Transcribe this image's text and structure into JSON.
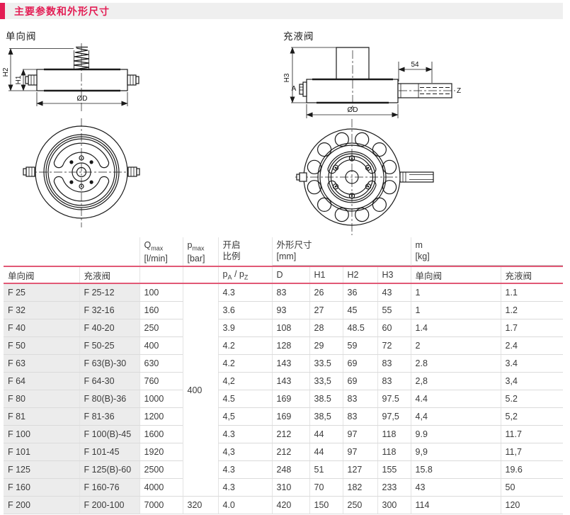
{
  "title": {
    "text": "主要参数和外形尺寸"
  },
  "colors": {
    "accent": "#e31d54",
    "rule_line": "#e15976",
    "shade": "#ececec",
    "drawing_ink": "#1a1a1a"
  },
  "drawings": {
    "check_valve": {
      "label": "单向阀",
      "dim_h1": "H1",
      "dim_h2": "H2",
      "dim_d": "ØD"
    },
    "fill_valve": {
      "label": "充液阀",
      "dim_h3": "H3",
      "dim_d": "ØD",
      "dim_len": "54",
      "port_a": "A",
      "port_z": "Z"
    }
  },
  "table": {
    "groups": {
      "q": {
        "sym": "Q",
        "sub": "max",
        "unit": "[l/min]"
      },
      "p": {
        "sym": "p",
        "sub": "max",
        "unit": "[bar]"
      },
      "ratio": {
        "line1": "开启",
        "line2": "比例"
      },
      "dims": {
        "title": "外形尺寸",
        "unit": "[mm]"
      },
      "mass": {
        "sym": "m",
        "unit": "[kg]"
      }
    },
    "subheads": {
      "check": "单向阀",
      "fill": "充液阀",
      "ratio_p1": "p",
      "ratio_s1": "A",
      "ratio_sep": " / ",
      "ratio_p2": "p",
      "ratio_s2": "Z",
      "d": "D",
      "h1": "H1",
      "h2": "H2",
      "h3": "H3",
      "m_check": "单向阀",
      "m_fill": "充液阀"
    },
    "rows": [
      {
        "check": "F 25",
        "fill": "F 25-12",
        "q": "100",
        "p": "400",
        "ratio": "4.3",
        "d": "83",
        "h1": "26",
        "h2": "36",
        "h3": "43",
        "m1": "1",
        "m2": "1.1"
      },
      {
        "check": "F 32",
        "fill": "F 32-16",
        "q": "160",
        "ratio": "3.6",
        "d": "93",
        "h1": "27",
        "h2": "45",
        "h3": "55",
        "m1": "1",
        "m2": "1.2"
      },
      {
        "check": "F 40",
        "fill": "F 40-20",
        "q": "250",
        "ratio": "3.9",
        "d": "108",
        "h1": "28",
        "h2": "48.5",
        "h3": "60",
        "m1": "1.4",
        "m2": "1.7"
      },
      {
        "check": "F 50",
        "fill": "F 50-25",
        "q": "400",
        "ratio": "4.2",
        "d": "128",
        "h1": "29",
        "h2": "59",
        "h3": "72",
        "m1": "2",
        "m2": "2.4"
      },
      {
        "check": "F 63",
        "fill": "F 63(B)-30",
        "q": "630",
        "ratio": "4.2",
        "d": "143",
        "h1": "33.5",
        "h2": "69",
        "h3": "83",
        "m1": "2.8",
        "m2": "3.4"
      },
      {
        "check": "F 64",
        "fill": "F 64-30",
        "q": "760",
        "ratio": "4,2",
        "d": "143",
        "h1": "33,5",
        "h2": "69",
        "h3": "83",
        "m1": "2,8",
        "m2": "3,4"
      },
      {
        "check": "F 80",
        "fill": "F 80(B)-36",
        "q": "1000",
        "ratio": "4.5",
        "d": "169",
        "h1": "38.5",
        "h2": "83",
        "h3": "97.5",
        "m1": "4.4",
        "m2": "5.2"
      },
      {
        "check": "F 81",
        "fill": "F 81-36",
        "q": "1200",
        "ratio": "4,5",
        "d": "169",
        "h1": "38,5",
        "h2": "83",
        "h3": "97,5",
        "m1": "4,4",
        "m2": "5,2"
      },
      {
        "check": "F 100",
        "fill": "F 100(B)-45",
        "q": "1600",
        "ratio": "4.3",
        "d": "212",
        "h1": "44",
        "h2": "97",
        "h3": "118",
        "m1": "9.9",
        "m2": "11.7"
      },
      {
        "check": "F 101",
        "fill": "F 101-45",
        "q": "1920",
        "ratio": "4,3",
        "d": "212",
        "h1": "44",
        "h2": "97",
        "h3": "118",
        "m1": "9,9",
        "m2": "11,7"
      },
      {
        "check": "F 125",
        "fill": "F 125(B)-60",
        "q": "2500",
        "ratio": "4.3",
        "d": "248",
        "h1": "51",
        "h2": "127",
        "h3": "155",
        "m1": "15.8",
        "m2": "19.6"
      },
      {
        "check": "F 160",
        "fill": "F 160-76",
        "q": "4000",
        "ratio": "4.3",
        "d": "310",
        "h1": "70",
        "h2": "182",
        "h3": "233",
        "m1": "43",
        "m2": "50"
      },
      {
        "check": "F 200",
        "fill": "F 200-100",
        "q": "7000",
        "p": "320",
        "ratio": "4.0",
        "d": "420",
        "h1": "150",
        "h2": "250",
        "h3": "300",
        "m1": "114",
        "m2": "120"
      }
    ]
  }
}
